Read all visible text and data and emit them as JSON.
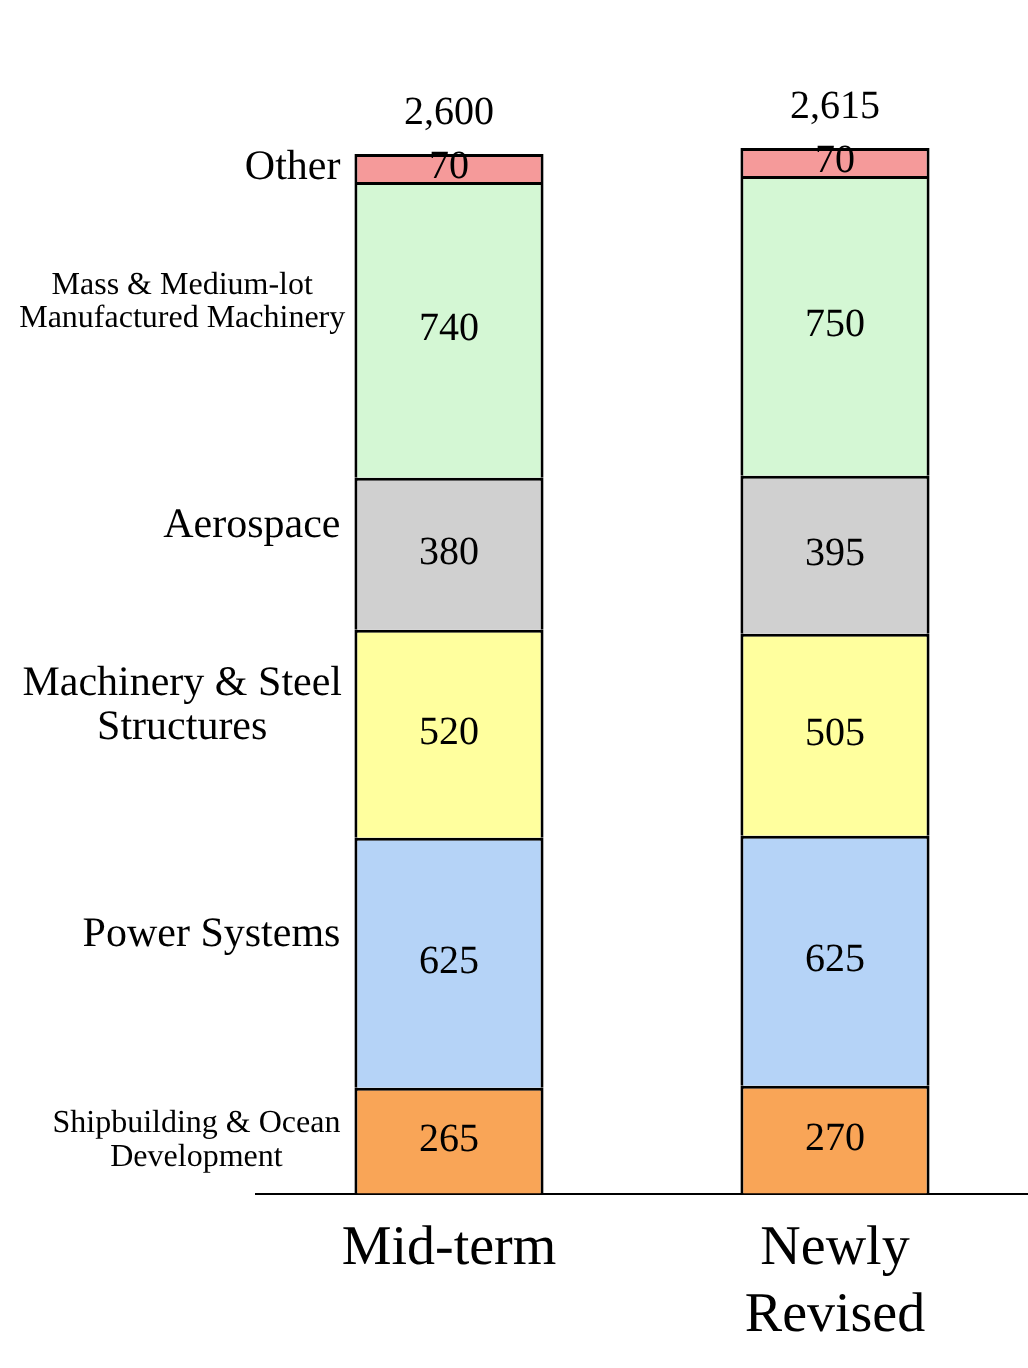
{
  "chart_data": {
    "type": "bar",
    "stacked": true,
    "categories": [
      "Mid-term",
      "Newly Revised"
    ],
    "series": [
      {
        "name": "Shipbuilding & Ocean Development",
        "color": "#f9a557",
        "values": [
          265,
          270
        ]
      },
      {
        "name": "Power Systems",
        "color": "#b5d3f7",
        "values": [
          625,
          625
        ]
      },
      {
        "name": "Machinery & Steel Structures",
        "color": "#ffff9e",
        "values": [
          520,
          505
        ]
      },
      {
        "name": "Aerospace",
        "color": "#d0d0d0",
        "values": [
          380,
          395
        ]
      },
      {
        "name": "Mass & Medium-lot Manufactured Machinery",
        "color": "#d4f7d4",
        "values": [
          740,
          750
        ]
      },
      {
        "name": "Other",
        "color": "#f59a9a",
        "values": [
          70,
          70
        ]
      }
    ],
    "data_labels": true,
    "totals": [
      "2,600",
      "2,615"
    ],
    "legend": false,
    "grid": false
  }
}
